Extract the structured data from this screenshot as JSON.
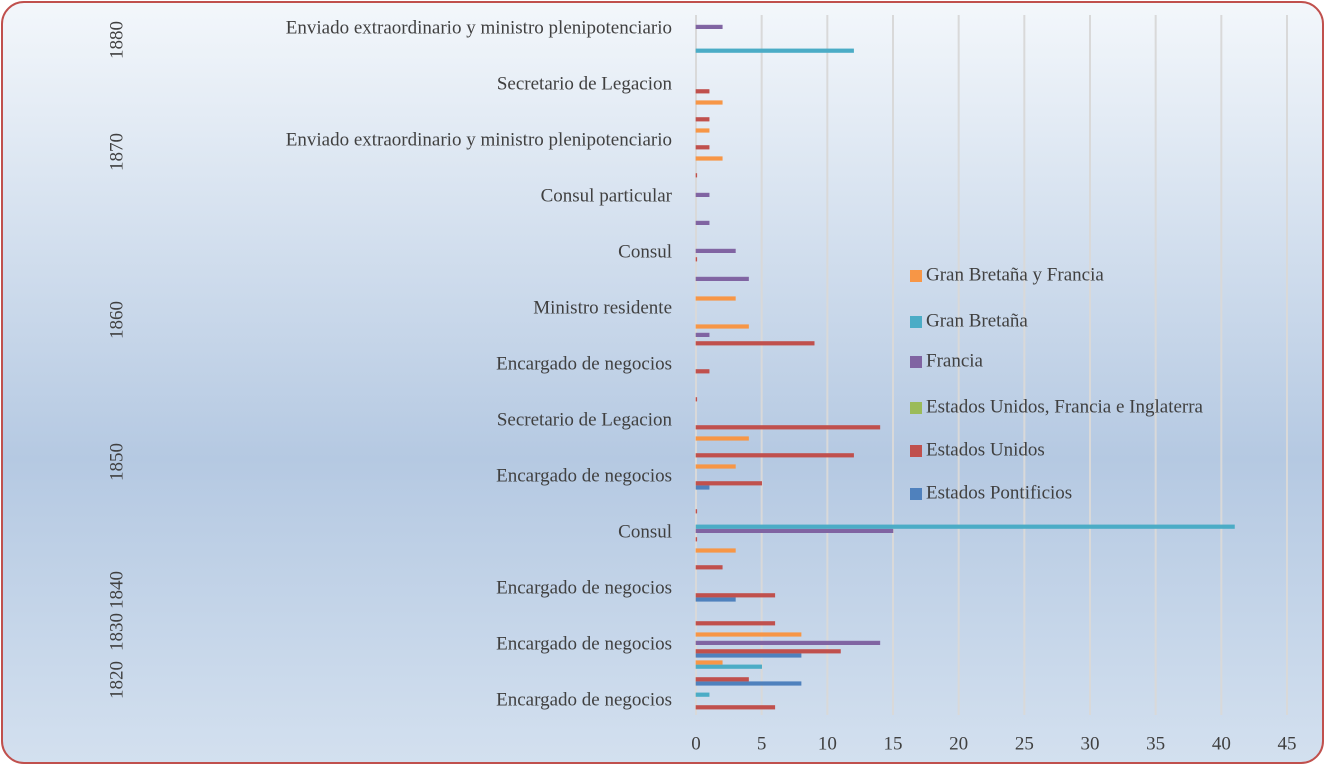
{
  "chart_data": {
    "type": "bar",
    "orientation": "horizontal",
    "categories": [
      "Encargado de negocios",
      null,
      "Encargado de negocios",
      null,
      "Encargado de negocios",
      null,
      "Consul",
      null,
      "Encargado de negocios",
      null,
      "Secretario de Legacion",
      null,
      "Encargado de negocios",
      null,
      "Ministro residente",
      null,
      "Consul",
      null,
      "Consul particular",
      null,
      "Enviado extraordinario y ministro plenipotenciario",
      null,
      "Secretario de Legacion",
      null,
      "Enviado extraordinario y ministro plenipotenciario"
    ],
    "groups": [
      "1820",
      "1830",
      "1840",
      "1850",
      "1860",
      "1870",
      "1880"
    ],
    "series": [
      {
        "name": "Estados Pontificios",
        "color": "#4f81bd",
        "values": [
          null,
          8,
          8,
          null,
          3,
          null,
          null,
          null,
          1,
          null,
          null,
          null,
          null,
          null,
          null,
          null,
          null,
          null,
          null,
          null,
          null,
          null,
          null,
          null,
          null
        ]
      },
      {
        "name": "Estados Unidos",
        "color": "#c0504d",
        "values": [
          6,
          4,
          11,
          6,
          6,
          2,
          0,
          0,
          5,
          12,
          14,
          0,
          1,
          9,
          null,
          null,
          0,
          null,
          null,
          0,
          1,
          1,
          1,
          null,
          null
        ]
      },
      {
        "name": "Estados Unidos, Francia e Inglaterra",
        "color": "#9bbb59",
        "values": [
          null,
          null,
          null,
          null,
          null,
          null,
          null,
          null,
          null,
          null,
          null,
          null,
          null,
          null,
          null,
          null,
          null,
          null,
          null,
          null,
          null,
          null,
          null,
          null,
          null
        ]
      },
      {
        "name": "Francia",
        "color": "#8064a2",
        "values": [
          null,
          null,
          14,
          null,
          null,
          null,
          15,
          null,
          null,
          null,
          null,
          null,
          null,
          1,
          null,
          4,
          3,
          1,
          1,
          null,
          null,
          null,
          null,
          null,
          2
        ]
      },
      {
        "name": "Gran Bretaña",
        "color": "#4bacc6",
        "values": [
          1,
          5,
          null,
          null,
          null,
          null,
          41,
          null,
          null,
          null,
          null,
          null,
          null,
          null,
          null,
          null,
          null,
          null,
          null,
          null,
          null,
          null,
          null,
          12,
          null
        ]
      },
      {
        "name": "Gran Bretaña y Francia",
        "color": "#f79646",
        "values": [
          null,
          2,
          8,
          null,
          null,
          3,
          null,
          null,
          3,
          4,
          null,
          null,
          null,
          4,
          3,
          null,
          null,
          null,
          null,
          2,
          1,
          2,
          null,
          null,
          null
        ]
      }
    ],
    "xlim": [
      0,
      45
    ],
    "xticks": [
      0,
      5,
      10,
      15,
      20,
      25,
      30,
      35,
      40,
      45
    ],
    "grid": true,
    "legend": "right"
  }
}
